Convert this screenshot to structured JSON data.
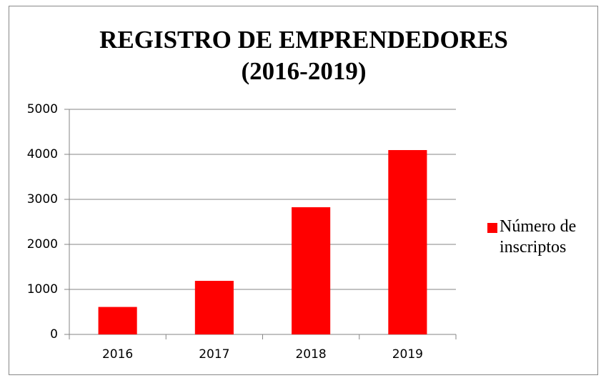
{
  "chart_data": {
    "type": "bar",
    "title": "REGISTRO DE EMPRENDEDORES (2016-2019)",
    "categories": [
      "2016",
      "2017",
      "2018",
      "2019"
    ],
    "series": [
      {
        "name": "Número de inscriptos",
        "color": "#ff0000",
        "values": [
          610,
          1190,
          2825,
          4095
        ]
      }
    ],
    "ylim": [
      0,
      5000
    ],
    "yticks": [
      0,
      1000,
      2000,
      3000,
      4000,
      5000
    ],
    "grid": true,
    "legend": "right"
  }
}
